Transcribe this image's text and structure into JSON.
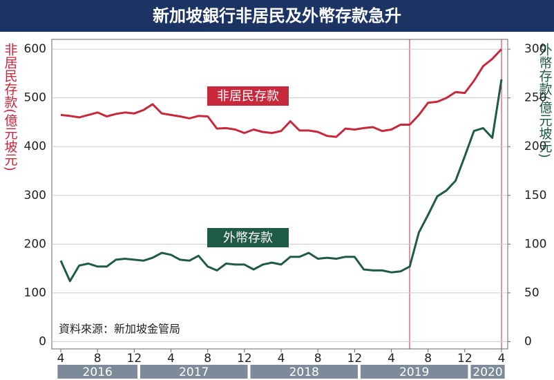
{
  "chart_data": {
    "type": "line",
    "title": "新加坡銀行非居民及外幣存款急升",
    "ylabel": "非居民存款(億元坡元)",
    "y2label": "外幣存款(億元坡元)",
    "source": "資料來源：新加坡金管局",
    "x": [
      "2016-4",
      "2016-5",
      "2016-6",
      "2016-7",
      "2016-8",
      "2016-9",
      "2016-10",
      "2016-11",
      "2016-12",
      "2017-1",
      "2017-2",
      "2017-3",
      "2017-4",
      "2017-5",
      "2017-6",
      "2017-7",
      "2017-8",
      "2017-9",
      "2017-10",
      "2017-11",
      "2017-12",
      "2018-1",
      "2018-2",
      "2018-3",
      "2018-4",
      "2018-5",
      "2018-6",
      "2018-7",
      "2018-8",
      "2018-9",
      "2018-10",
      "2018-11",
      "2018-12",
      "2019-1",
      "2019-2",
      "2019-3",
      "2019-4",
      "2019-5",
      "2019-6",
      "2019-7",
      "2019-8",
      "2019-9",
      "2019-10",
      "2019-11",
      "2019-12",
      "2020-1",
      "2020-2",
      "2020-3",
      "2020-4"
    ],
    "xticks": [
      {
        "value": "2016-4",
        "label": "4"
      },
      {
        "value": "2016-8",
        "label": "8"
      },
      {
        "value": "2016-12",
        "label": "12"
      },
      {
        "value": "2017-4",
        "label": "4"
      },
      {
        "value": "2017-8",
        "label": "8"
      },
      {
        "value": "2017-12",
        "label": "12"
      },
      {
        "value": "2018-4",
        "label": "4"
      },
      {
        "value": "2018-8",
        "label": "8"
      },
      {
        "value": "2018-12",
        "label": "12"
      },
      {
        "value": "2019-4",
        "label": "4"
      },
      {
        "value": "2019-8",
        "label": "8"
      },
      {
        "value": "2019-12",
        "label": "12"
      },
      {
        "value": "2020-4",
        "label": "4"
      }
    ],
    "years": [
      "2016",
      "2017",
      "2018",
      "2019",
      "2020"
    ],
    "ylim": [
      -15,
      620
    ],
    "yticks": [
      0,
      100,
      200,
      300,
      400,
      500,
      600
    ],
    "y2lim": [
      -7.5,
      310
    ],
    "y2ticks": [
      0,
      50,
      100,
      150,
      200,
      250,
      300
    ],
    "grid": true,
    "series": [
      {
        "name": "非居民存款",
        "color": "#c8283c",
        "values": [
          465,
          463,
          460,
          465,
          470,
          462,
          467,
          470,
          468,
          475,
          487,
          468,
          465,
          462,
          458,
          463,
          462,
          437,
          438,
          435,
          428,
          435,
          430,
          428,
          432,
          452,
          433,
          433,
          430,
          422,
          420,
          437,
          435,
          438,
          440,
          432,
          435,
          445,
          445,
          465,
          490,
          492,
          500,
          512,
          510,
          535,
          565,
          580,
          600
        ]
      },
      {
        "name": "外幣存款",
        "color": "#1f5a44",
        "axis": "y2",
        "values": [
          83,
          62,
          78,
          80,
          77,
          77,
          84,
          85,
          84,
          83,
          86,
          91,
          89,
          84,
          83,
          88,
          77,
          73,
          80,
          79,
          79,
          74,
          79,
          81,
          79,
          87,
          87,
          91,
          85,
          86,
          85,
          87,
          87,
          74,
          73,
          73,
          71,
          72,
          77,
          112,
          130,
          149,
          155,
          165,
          190,
          216,
          219,
          209,
          269
        ]
      }
    ]
  }
}
